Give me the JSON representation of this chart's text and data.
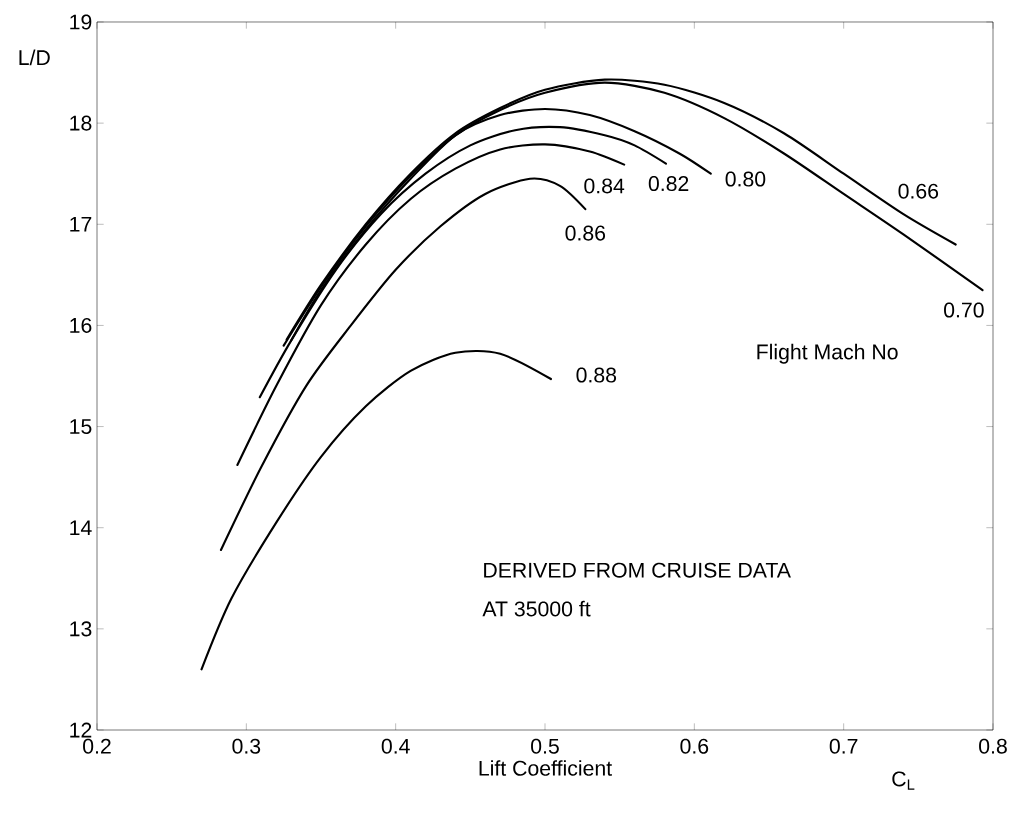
{
  "chart_data": {
    "type": "line",
    "xlabel": "Lift Coefficient",
    "ylabel": "L/D",
    "annotations": [
      "Flight Mach No",
      "DERIVED FROM CRUISE DATA",
      "AT 35000 ft",
      "C$_{L}$"
    ],
    "xlim": [
      0.2,
      0.8
    ],
    "ylim": [
      12,
      19
    ],
    "xticks": [
      0.2,
      0.3,
      0.4,
      0.5,
      0.6,
      0.7,
      0.8
    ],
    "yticks": [
      12,
      13,
      14,
      15,
      16,
      17,
      18,
      19
    ],
    "grid": false,
    "legend": false,
    "series": [
      {
        "name": "0.66",
        "color": "#000000",
        "x": [
          0.327,
          0.35,
          0.38,
          0.41,
          0.44,
          0.47,
          0.5,
          0.54,
          0.58,
          0.62,
          0.66,
          0.7,
          0.74,
          0.775
        ],
        "values": [
          15.86,
          16.4,
          17.0,
          17.5,
          17.9,
          18.15,
          18.33,
          18.43,
          18.38,
          18.2,
          17.9,
          17.5,
          17.1,
          16.8
        ]
      },
      {
        "name": "0.70",
        "color": "#000000",
        "x": [
          0.325,
          0.35,
          0.38,
          0.41,
          0.44,
          0.47,
          0.5,
          0.54,
          0.58,
          0.62,
          0.66,
          0.7,
          0.74,
          0.793
        ],
        "values": [
          15.8,
          16.38,
          16.98,
          17.48,
          17.88,
          18.13,
          18.3,
          18.4,
          18.3,
          18.05,
          17.7,
          17.3,
          16.9,
          16.35
        ]
      },
      {
        "name": "0.80",
        "color": "#000000",
        "x": [
          0.33,
          0.35,
          0.38,
          0.41,
          0.44,
          0.47,
          0.5,
          0.53,
          0.56,
          0.59,
          0.611
        ],
        "values": [
          15.85,
          16.35,
          16.95,
          17.45,
          17.88,
          18.08,
          18.14,
          18.08,
          17.92,
          17.7,
          17.5
        ]
      },
      {
        "name": "0.82",
        "color": "#000000",
        "x": [
          0.309,
          0.33,
          0.36,
          0.39,
          0.42,
          0.45,
          0.48,
          0.51,
          0.54,
          0.56,
          0.581
        ],
        "values": [
          15.29,
          15.85,
          16.55,
          17.1,
          17.5,
          17.78,
          17.93,
          17.96,
          17.88,
          17.78,
          17.6
        ]
      },
      {
        "name": "0.84",
        "color": "#000000",
        "x": [
          0.294,
          0.32,
          0.35,
          0.38,
          0.41,
          0.44,
          0.47,
          0.5,
          0.53,
          0.553
        ],
        "values": [
          14.62,
          15.4,
          16.2,
          16.8,
          17.25,
          17.55,
          17.74,
          17.79,
          17.72,
          17.59
        ]
      },
      {
        "name": "0.86",
        "color": "#000000",
        "x": [
          0.283,
          0.31,
          0.34,
          0.37,
          0.4,
          0.43,
          0.46,
          0.49,
          0.51,
          0.527
        ],
        "values": [
          13.78,
          14.6,
          15.4,
          16.0,
          16.55,
          16.98,
          17.3,
          17.45,
          17.38,
          17.15
        ]
      },
      {
        "name": "0.88",
        "color": "#000000",
        "x": [
          0.27,
          0.29,
          0.32,
          0.35,
          0.38,
          0.41,
          0.44,
          0.47,
          0.504
        ],
        "values": [
          12.6,
          13.3,
          14.05,
          14.7,
          15.2,
          15.55,
          15.73,
          15.72,
          15.47
        ]
      }
    ]
  }
}
